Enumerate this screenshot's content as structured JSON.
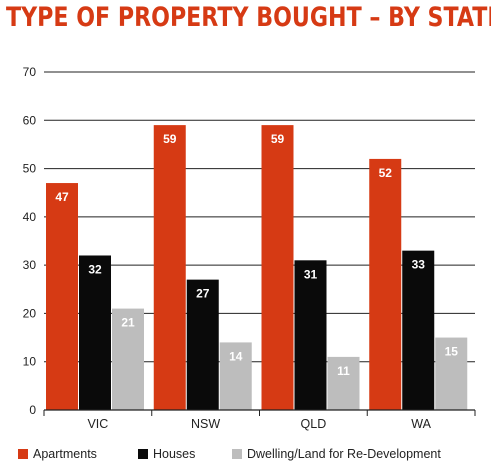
{
  "chart_data": {
    "type": "bar",
    "title": "TYPE OF PROPERTY BOUGHT – BY STATE",
    "categories": [
      "VIC",
      "NSW",
      "QLD",
      "WA"
    ],
    "series": [
      {
        "name": "Apartments",
        "color": "#d63a14",
        "values": [
          47,
          59,
          59,
          52
        ]
      },
      {
        "name": "Houses",
        "color": "#0a0a0a",
        "values": [
          32,
          27,
          31,
          33
        ]
      },
      {
        "name": "Dwelling/Land for Re-Development",
        "color": "#bdbdbd",
        "values": [
          21,
          14,
          11,
          15
        ]
      }
    ],
    "value_display": {
      "Apartments": [
        47,
        59,
        59,
        52
      ],
      "Houses": [
        32,
        27,
        31,
        33
      ],
      "Dwelling/Land for Re-Development": [
        21,
        14,
        11,
        15
      ]
    },
    "ylim": [
      0,
      70
    ],
    "yticks": [
      0,
      10,
      20,
      30,
      40,
      50,
      60,
      70
    ],
    "grid": true,
    "legend": "bottom"
  }
}
